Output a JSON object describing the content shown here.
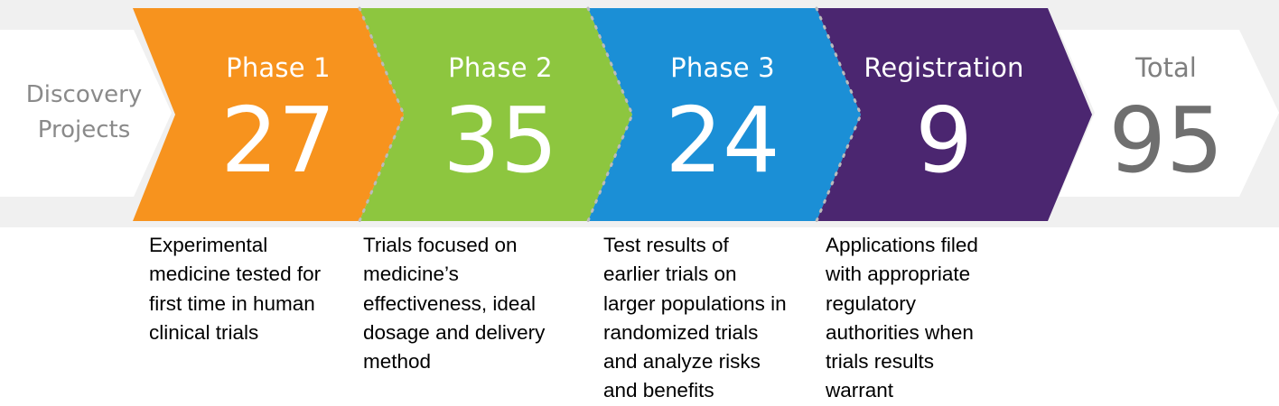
{
  "discovery": {
    "lines": [
      "Discovery",
      "Projects"
    ]
  },
  "phases": [
    {
      "title": "Phase 1",
      "count": "27",
      "color": "#F7931E",
      "description": [
        "Experimental",
        "medicine tested for",
        "first time in human",
        "clinical trials"
      ]
    },
    {
      "title": "Phase 2",
      "count": "35",
      "color": "#8DC63F",
      "description": [
        "Trials focused on",
        "medicine’s",
        "effectiveness, ideal",
        "dosage and delivery",
        "method"
      ]
    },
    {
      "title": "Phase 3",
      "count": "24",
      "color": "#1B8FD6",
      "description": [
        "Test results of",
        "earlier trials on",
        "larger populations in",
        "randomized trials",
        "and analyze risks",
        "and benefits"
      ]
    },
    {
      "title": "Registration",
      "count": "9",
      "color": "#4B2670",
      "description": [
        "Applications filed",
        "with appropriate",
        "regulatory",
        "authorities when",
        "trials results",
        "warrant"
      ]
    }
  ],
  "total": {
    "title": "Total",
    "count": "95"
  },
  "colors": {
    "background_band": "#F0F0F0",
    "end_arrows": "#FFFFFF",
    "separator_dots": "#BBBBBB"
  }
}
